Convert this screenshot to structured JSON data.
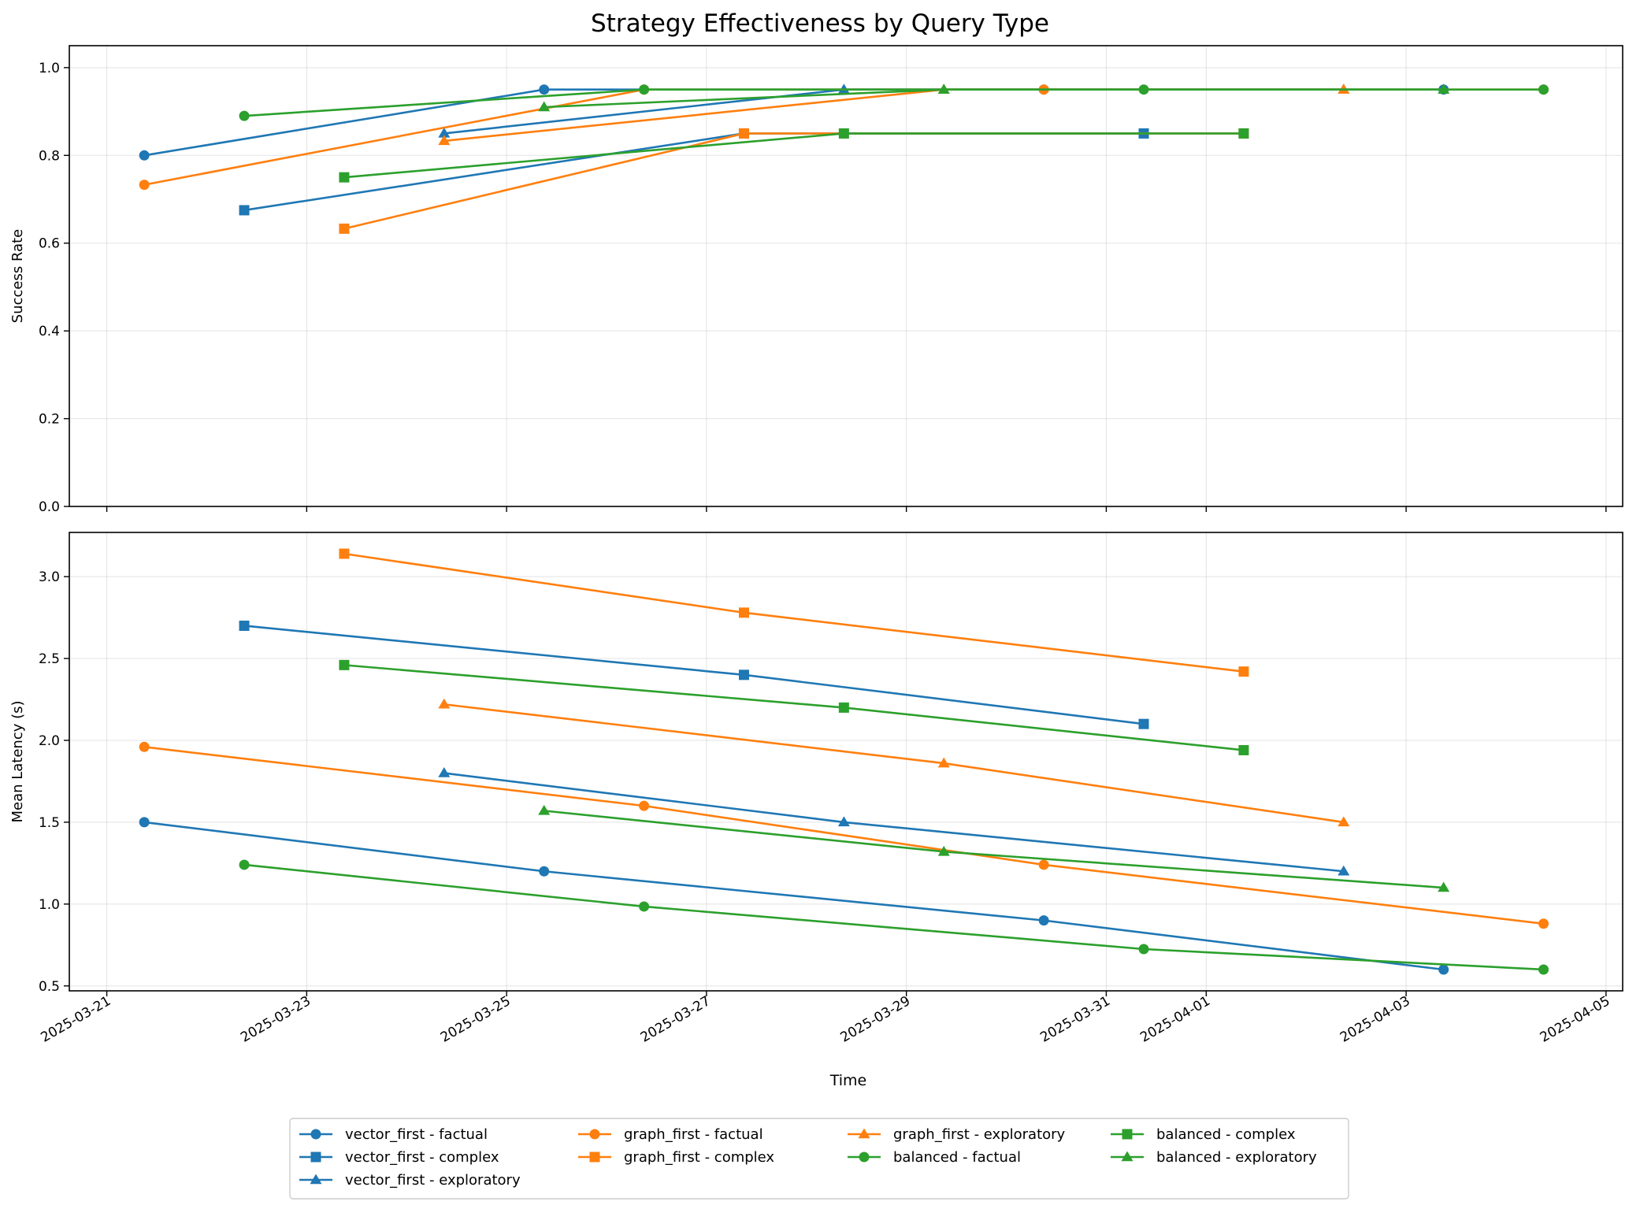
{
  "title": "Strategy Effectiveness by Query Type",
  "x_label": "Time",
  "legend_labels": [
    "vector_first - factual",
    "vector_first - complex",
    "vector_first - exploratory",
    "graph_first - factual",
    "graph_first - complex",
    "graph_first - exploratory",
    "balanced - factual",
    "balanced - complex",
    "balanced - exploratory"
  ],
  "chart_data": [
    {
      "type": "line",
      "title": "Strategy Effectiveness by Query Type",
      "ylabel": "Success Rate",
      "xlabel": "",
      "xlim": [
        "2025-03-20T15:00",
        "2025-04-05T04:00"
      ],
      "ylim": [
        0,
        1.05
      ],
      "y_ticks": [
        0.0,
        0.2,
        0.4,
        0.6,
        0.8,
        1.0
      ],
      "y_tick_labels": [
        "0.0",
        "0.2",
        "0.4",
        "0.6",
        "0.8",
        "1.0"
      ],
      "x_ticks": [
        "2025-03-21",
        "2025-03-23",
        "2025-03-25",
        "2025-03-27",
        "2025-03-29",
        "2025-03-31",
        "2025-04-01",
        "2025-04-03",
        "2025-04-05"
      ],
      "grid": true,
      "series": [
        {
          "name": "vector_first - factual",
          "color": "#1f77b4",
          "marker": "circle",
          "x": [
            "2025-03-21T09:00",
            "2025-03-25T09:00",
            "2025-03-30T09:00",
            "2025-04-03T09:00"
          ],
          "y": [
            0.8,
            0.95,
            0.95,
            0.95
          ]
        },
        {
          "name": "vector_first - complex",
          "color": "#1f77b4",
          "marker": "square",
          "x": [
            "2025-03-22T09:00",
            "2025-03-27T09:00",
            "2025-03-31T09:00"
          ],
          "y": [
            0.675,
            0.85,
            0.85
          ]
        },
        {
          "name": "vector_first - exploratory",
          "color": "#1f77b4",
          "marker": "triangle",
          "x": [
            "2025-03-24T09:00",
            "2025-03-28T09:00",
            "2025-04-02T09:00"
          ],
          "y": [
            0.85,
            0.95,
            0.95
          ]
        },
        {
          "name": "graph_first - factual",
          "color": "#ff7f0e",
          "marker": "circle",
          "x": [
            "2025-03-21T09:00",
            "2025-03-26T09:00",
            "2025-03-30T09:00",
            "2025-04-04T09:00"
          ],
          "y": [
            0.733,
            0.95,
            0.95,
            0.95
          ]
        },
        {
          "name": "graph_first - complex",
          "color": "#ff7f0e",
          "marker": "square",
          "x": [
            "2025-03-23T09:00",
            "2025-03-27T09:00",
            "2025-04-01T09:00"
          ],
          "y": [
            0.633,
            0.85,
            0.85
          ]
        },
        {
          "name": "graph_first - exploratory",
          "color": "#ff7f0e",
          "marker": "triangle",
          "x": [
            "2025-03-24T09:00",
            "2025-03-29T09:00",
            "2025-04-02T09:00"
          ],
          "y": [
            0.833,
            0.95,
            0.95
          ]
        },
        {
          "name": "balanced - factual",
          "color": "#2ca02c",
          "marker": "circle",
          "x": [
            "2025-03-22T09:00",
            "2025-03-26T09:00",
            "2025-03-31T09:00",
            "2025-04-04T09:00"
          ],
          "y": [
            0.89,
            0.95,
            0.95,
            0.95
          ]
        },
        {
          "name": "balanced - complex",
          "color": "#2ca02c",
          "marker": "square",
          "x": [
            "2025-03-23T09:00",
            "2025-03-28T09:00",
            "2025-04-01T09:00"
          ],
          "y": [
            0.75,
            0.85,
            0.85
          ]
        },
        {
          "name": "balanced - exploratory",
          "color": "#2ca02c",
          "marker": "triangle",
          "x": [
            "2025-03-25T09:00",
            "2025-03-29T09:00",
            "2025-04-03T09:00"
          ],
          "y": [
            0.91,
            0.95,
            0.95
          ]
        }
      ]
    },
    {
      "type": "line",
      "title": "",
      "ylabel": "Mean Latency (s)",
      "xlabel": "Time",
      "xlim": [
        "2025-03-20T15:00",
        "2025-04-05T04:00"
      ],
      "ylim": [
        0.47,
        3.27
      ],
      "y_ticks": [
        0.5,
        1.0,
        1.5,
        2.0,
        2.5,
        3.0
      ],
      "y_tick_labels": [
        "0.5",
        "1.0",
        "1.5",
        "2.0",
        "2.5",
        "3.0"
      ],
      "x_ticks": [
        "2025-03-21",
        "2025-03-23",
        "2025-03-25",
        "2025-03-27",
        "2025-03-29",
        "2025-03-31",
        "2025-04-01",
        "2025-04-03",
        "2025-04-05"
      ],
      "grid": true,
      "series": [
        {
          "name": "vector_first - factual",
          "color": "#1f77b4",
          "marker": "circle",
          "x": [
            "2025-03-21T09:00",
            "2025-03-25T09:00",
            "2025-03-30T09:00",
            "2025-04-03T09:00"
          ],
          "y": [
            1.5,
            1.2,
            0.9,
            0.6
          ]
        },
        {
          "name": "vector_first - complex",
          "color": "#1f77b4",
          "marker": "square",
          "x": [
            "2025-03-22T09:00",
            "2025-03-27T09:00",
            "2025-03-31T09:00"
          ],
          "y": [
            2.7,
            2.4,
            2.1
          ]
        },
        {
          "name": "vector_first - exploratory",
          "color": "#1f77b4",
          "marker": "triangle",
          "x": [
            "2025-03-24T09:00",
            "2025-03-28T09:00",
            "2025-04-02T09:00"
          ],
          "y": [
            1.8,
            1.5,
            1.2
          ]
        },
        {
          "name": "graph_first - factual",
          "color": "#ff7f0e",
          "marker": "circle",
          "x": [
            "2025-03-21T09:00",
            "2025-03-26T09:00",
            "2025-03-30T09:00",
            "2025-04-04T09:00"
          ],
          "y": [
            1.96,
            1.6,
            1.24,
            0.88
          ]
        },
        {
          "name": "graph_first - complex",
          "color": "#ff7f0e",
          "marker": "square",
          "x": [
            "2025-03-23T09:00",
            "2025-03-27T09:00",
            "2025-04-01T09:00"
          ],
          "y": [
            3.14,
            2.78,
            2.42
          ]
        },
        {
          "name": "graph_first - exploratory",
          "color": "#ff7f0e",
          "marker": "triangle",
          "x": [
            "2025-03-24T09:00",
            "2025-03-29T09:00",
            "2025-04-02T09:00"
          ],
          "y": [
            2.22,
            1.86,
            1.5
          ]
        },
        {
          "name": "balanced - factual",
          "color": "#2ca02c",
          "marker": "circle",
          "x": [
            "2025-03-22T09:00",
            "2025-03-26T09:00",
            "2025-03-31T09:00",
            "2025-04-04T09:00"
          ],
          "y": [
            1.24,
            0.985,
            0.725,
            0.6
          ]
        },
        {
          "name": "balanced - complex",
          "color": "#2ca02c",
          "marker": "square",
          "x": [
            "2025-03-23T09:00",
            "2025-03-28T09:00",
            "2025-04-01T09:00"
          ],
          "y": [
            2.46,
            2.2,
            1.94
          ]
        },
        {
          "name": "balanced - exploratory",
          "color": "#2ca02c",
          "marker": "triangle",
          "x": [
            "2025-03-25T09:00",
            "2025-03-29T09:00",
            "2025-04-03T09:00"
          ],
          "y": [
            1.57,
            1.32,
            1.1
          ]
        }
      ]
    }
  ]
}
